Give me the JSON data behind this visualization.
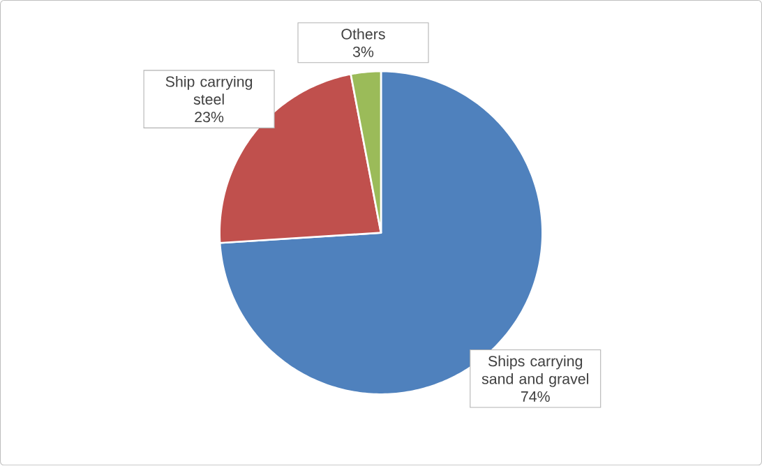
{
  "chart_data": {
    "type": "pie",
    "categories": [
      "Ships carrying sand and gravel",
      "Ship carrying steel",
      "Others"
    ],
    "values": [
      74,
      23,
      3
    ],
    "colors": [
      "#4f81bd",
      "#c0504d",
      "#9bbb59"
    ],
    "value_labels": [
      "74%",
      "23%",
      "3%"
    ]
  }
}
